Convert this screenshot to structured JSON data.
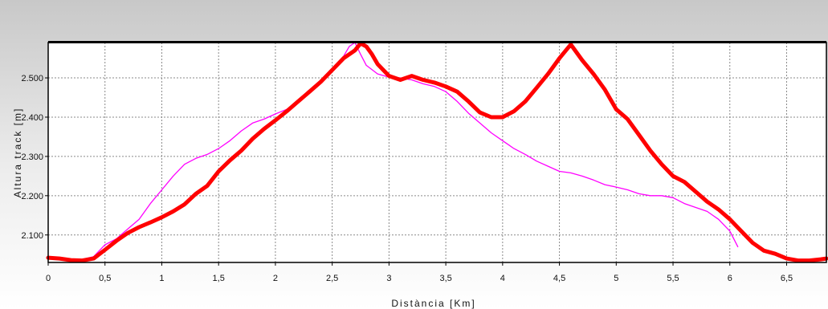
{
  "chart_data": {
    "type": "line",
    "title": "",
    "xlabel": "Distància [Km]",
    "ylabel": "Altura track [m]",
    "xlim": [
      0,
      6.85
    ],
    "ylim": [
      2030,
      2590
    ],
    "x_ticks": [
      "0",
      "0,5",
      "1",
      "1,5",
      "2",
      "2,5",
      "3",
      "3,5",
      "4",
      "4,5",
      "5",
      "5,5",
      "6",
      "6,5"
    ],
    "y_ticks": [
      "2.100",
      "2.200",
      "2.300",
      "2.400",
      "2.500"
    ],
    "grid": true,
    "colors": {
      "series_1": "#ff0000",
      "series_2": "#ff00ff"
    },
    "series": [
      {
        "x": [
          0,
          0.1,
          0.2,
          0.3,
          0.4,
          0.5,
          0.6,
          0.7,
          0.8,
          0.9,
          1.0,
          1.1,
          1.2,
          1.3,
          1.4,
          1.5,
          1.6,
          1.7,
          1.8,
          1.9,
          2.0,
          2.1,
          2.2,
          2.3,
          2.4,
          2.5,
          2.6,
          2.7,
          2.75,
          2.8,
          2.85,
          2.9,
          3.0,
          3.1,
          3.2,
          3.3,
          3.4,
          3.5,
          3.6,
          3.7,
          3.8,
          3.9,
          4.0,
          4.1,
          4.2,
          4.3,
          4.4,
          4.5,
          4.6,
          4.7,
          4.8,
          4.9,
          5.0,
          5.1,
          5.2,
          5.3,
          5.4,
          5.5,
          5.6,
          5.7,
          5.8,
          5.9,
          6.0,
          6.1,
          6.2,
          6.3,
          6.4,
          6.5,
          6.6,
          6.7,
          6.8,
          6.85
        ],
        "y": [
          2042,
          2040,
          2036,
          2035,
          2040,
          2062,
          2085,
          2105,
          2120,
          2132,
          2145,
          2160,
          2178,
          2205,
          2225,
          2262,
          2290,
          2315,
          2345,
          2370,
          2392,
          2415,
          2440,
          2465,
          2490,
          2520,
          2550,
          2570,
          2588,
          2580,
          2560,
          2535,
          2505,
          2495,
          2505,
          2495,
          2488,
          2478,
          2465,
          2440,
          2412,
          2400,
          2400,
          2415,
          2440,
          2475,
          2510,
          2550,
          2585,
          2545,
          2510,
          2470,
          2420,
          2395,
          2355,
          2315,
          2280,
          2250,
          2235,
          2210,
          2185,
          2165,
          2140,
          2110,
          2080,
          2060,
          2052,
          2040,
          2035,
          2035,
          2038,
          2040
        ]
      },
      {
        "x": [
          0,
          0.1,
          0.2,
          0.3,
          0.4,
          0.5,
          0.6,
          0.7,
          0.8,
          0.9,
          1.0,
          1.1,
          1.2,
          1.3,
          1.4,
          1.5,
          1.6,
          1.7,
          1.8,
          1.9,
          2.0,
          2.1,
          2.2,
          2.3,
          2.4,
          2.5,
          2.6,
          2.65,
          2.7,
          2.75,
          2.8,
          2.9,
          3.0,
          3.1,
          3.2,
          3.3,
          3.4,
          3.5,
          3.6,
          3.7,
          3.8,
          3.9,
          4.0,
          4.1,
          4.2,
          4.3,
          4.4,
          4.5,
          4.6,
          4.7,
          4.8,
          4.9,
          5.0,
          5.1,
          5.2,
          5.3,
          5.4,
          5.5,
          5.6,
          5.7,
          5.8,
          5.9,
          6.0,
          6.07
        ],
        "y": [
          2045,
          2040,
          2038,
          2038,
          2045,
          2075,
          2090,
          2115,
          2140,
          2180,
          2215,
          2250,
          2280,
          2295,
          2305,
          2320,
          2340,
          2365,
          2385,
          2395,
          2408,
          2420,
          2440,
          2462,
          2490,
          2520,
          2555,
          2580,
          2590,
          2560,
          2532,
          2510,
          2502,
          2500,
          2495,
          2485,
          2478,
          2465,
          2440,
          2410,
          2385,
          2360,
          2340,
          2320,
          2305,
          2288,
          2275,
          2262,
          2258,
          2250,
          2240,
          2228,
          2222,
          2215,
          2205,
          2200,
          2200,
          2195,
          2180,
          2170,
          2160,
          2140,
          2110,
          2070
        ]
      }
    ]
  }
}
